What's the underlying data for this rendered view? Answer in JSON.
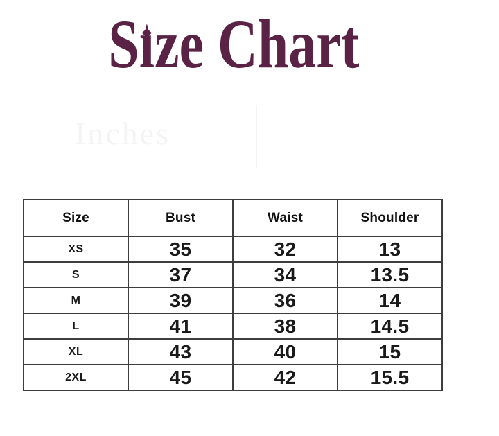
{
  "title": {
    "text": "Size Chart",
    "part_before_i": "S",
    "dotless_i": "ı",
    "part_after_i": "ze Chart",
    "sparkle_icon": "four-point-star-icon",
    "color": "#5a2244"
  },
  "watermark": {
    "text": "Inches"
  },
  "colors": {
    "title": "#5a2244",
    "table_border": "#3d3d3d",
    "header_text": "#111111",
    "cell_text": "#1a1a1a",
    "watermark": "#f4f4f4"
  },
  "chart_data": {
    "type": "table",
    "title": "Size Chart",
    "units_watermark": "Inches",
    "columns": [
      "Size",
      "Bust",
      "Waist",
      "Shoulder"
    ],
    "rows": [
      [
        "XS",
        "35",
        "32",
        "13"
      ],
      [
        "S",
        "37",
        "34",
        "13.5"
      ],
      [
        "M",
        "39",
        "36",
        "14"
      ],
      [
        "L",
        "41",
        "38",
        "14.5"
      ],
      [
        "XL",
        "43",
        "40",
        "15"
      ],
      [
        "2XL",
        "45",
        "42",
        "15.5"
      ]
    ]
  }
}
